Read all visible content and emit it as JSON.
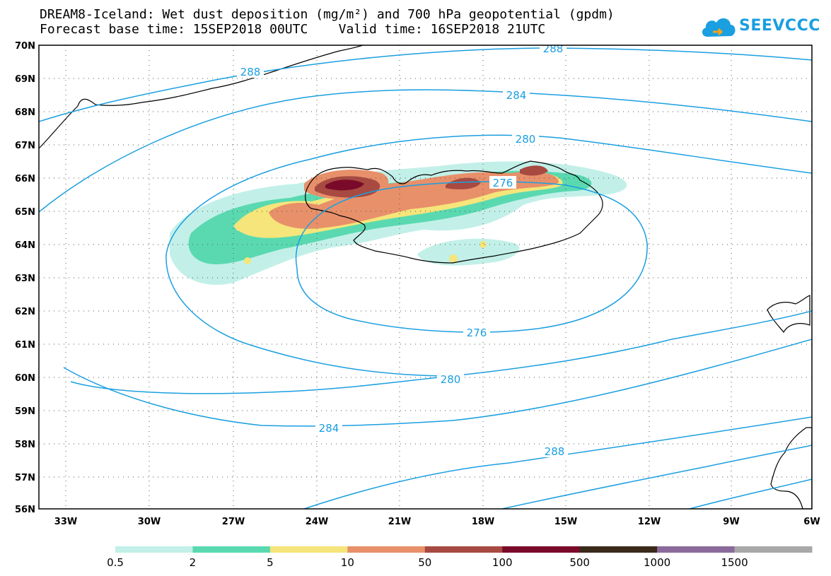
{
  "title": {
    "line1": "DREAM8-Iceland: Wet dust deposition (mg/m²) and 700 hPa geopotential (gpdm)",
    "line2": "Forecast base time: 15SEP2018 00UTC    Valid time: 16SEP2018 21UTC"
  },
  "logo": {
    "text": "SEEVCCC",
    "icon": "cloud-logo-icon"
  },
  "axes": {
    "lat_labels": [
      "70N",
      "69N",
      "68N",
      "67N",
      "66N",
      "65N",
      "64N",
      "63N",
      "62N",
      "61N",
      "60N",
      "59N",
      "58N",
      "57N",
      "56N"
    ],
    "lon_labels": [
      "33W",
      "30W",
      "27W",
      "24W",
      "21W",
      "18W",
      "15W",
      "12W",
      "9W",
      "6W"
    ],
    "lat_range": [
      56,
      70
    ],
    "lon_range": [
      -34.1,
      -6
    ]
  },
  "contours": {
    "field": "700 hPa geopotential (gpdm)",
    "levels": [
      "276",
      "280",
      "284",
      "288"
    ],
    "color": "#1a9fe0"
  },
  "legend": {
    "labels": [
      "0.5",
      "2",
      "5",
      "10",
      "50",
      "100",
      "500",
      "1000",
      "1500"
    ],
    "colors": [
      "#c2f0e8",
      "#5ad9b0",
      "#f5e57a",
      "#e8906a",
      "#a84a42",
      "#7a0a2a",
      "#3a2a1a",
      "#8a6a9a",
      "#a8a8a8"
    ]
  }
}
